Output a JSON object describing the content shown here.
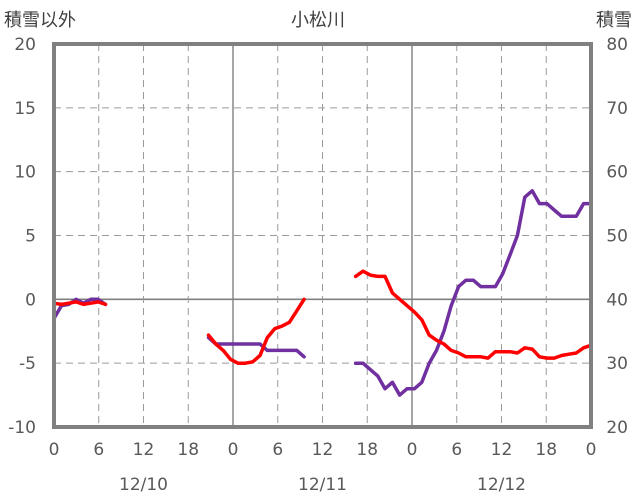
{
  "chart_data": {
    "type": "line",
    "title": "小松川",
    "left_axis_label": "積雪以外",
    "right_axis_label": "積雪",
    "y_left": {
      "min": -10,
      "max": 20,
      "ticks": [
        20,
        15,
        10,
        5,
        0,
        -5,
        -10
      ]
    },
    "y_right": {
      "min": 20,
      "max": 80,
      "ticks": [
        80,
        70,
        60,
        50,
        40,
        30,
        20
      ]
    },
    "x_ticks": [
      "0",
      "6",
      "12",
      "18",
      "0",
      "6",
      "12",
      "18",
      "0",
      "6",
      "12",
      "18",
      "0"
    ],
    "date_labels": [
      "12/10",
      "12/11",
      "12/12"
    ],
    "grid": true,
    "series": [
      {
        "color": "#7030a0",
        "axis": "left",
        "segments": [
          [
            [
              0,
              -1.5
            ],
            [
              1,
              -0.5
            ],
            [
              2,
              -0.4
            ],
            [
              3,
              0
            ],
            [
              4,
              -0.3
            ],
            [
              5,
              0
            ],
            [
              6,
              0
            ],
            [
              7,
              -0.4
            ]
          ],
          [
            [
              21,
              -3
            ],
            [
              22,
              -3.5
            ],
            [
              23,
              -3.5
            ],
            [
              24,
              -3.5
            ],
            [
              25,
              -3.5
            ],
            [
              26,
              -3.5
            ],
            [
              27,
              -3.5
            ],
            [
              28,
              -3.5
            ],
            [
              29,
              -4
            ],
            [
              30,
              -4
            ],
            [
              31,
              -4
            ],
            [
              32,
              -4
            ],
            [
              33,
              -4
            ],
            [
              34,
              -4.5
            ]
          ],
          [
            [
              41,
              -5
            ],
            [
              42,
              -5
            ],
            [
              43,
              -5.5
            ],
            [
              44,
              -6
            ],
            [
              45,
              -7
            ],
            [
              46,
              -6.5
            ],
            [
              47,
              -7.5
            ],
            [
              48,
              -7
            ],
            [
              49,
              -7
            ],
            [
              50,
              -6.5
            ],
            [
              51,
              -5
            ],
            [
              52,
              -4
            ],
            [
              53,
              -2.5
            ],
            [
              54,
              -0.5
            ],
            [
              55,
              1
            ],
            [
              56,
              1.5
            ],
            [
              57,
              1.5
            ],
            [
              58,
              1
            ],
            [
              59,
              1
            ],
            [
              60,
              1
            ],
            [
              61,
              2
            ],
            [
              62,
              3.5
            ],
            [
              63,
              5
            ],
            [
              64,
              8
            ],
            [
              65,
              8.5
            ],
            [
              66,
              7.5
            ],
            [
              67,
              7.5
            ],
            [
              68,
              7
            ],
            [
              69,
              6.5
            ],
            [
              70,
              6.5
            ],
            [
              71,
              6.5
            ],
            [
              72,
              7.5
            ],
            [
              73,
              7.5
            ]
          ]
        ]
      },
      {
        "color": "#ff0000",
        "axis": "left",
        "segments": [
          [
            [
              0,
              -0.3
            ],
            [
              1,
              -0.4
            ],
            [
              2,
              -0.3
            ],
            [
              3,
              -0.2
            ],
            [
              4,
              -0.4
            ],
            [
              5,
              -0.3
            ],
            [
              6,
              -0.2
            ],
            [
              7,
              -0.4
            ]
          ],
          [
            [
              21,
              -2.8
            ],
            [
              22,
              -3.5
            ],
            [
              23,
              -4
            ],
            [
              24,
              -4.7
            ],
            [
              25,
              -5
            ],
            [
              26,
              -5
            ],
            [
              27,
              -4.9
            ],
            [
              28,
              -4.4
            ],
            [
              29,
              -3
            ],
            [
              30,
              -2.3
            ],
            [
              31,
              -2.1
            ],
            [
              32,
              -1.8
            ],
            [
              33,
              -0.9
            ],
            [
              34,
              0
            ]
          ],
          [
            [
              41,
              1.8
            ],
            [
              42,
              2.2
            ],
            [
              43,
              1.9
            ],
            [
              44,
              1.8
            ],
            [
              45,
              1.8
            ],
            [
              46,
              0.5
            ],
            [
              47,
              0
            ],
            [
              48,
              -0.5
            ],
            [
              49,
              -1
            ],
            [
              50,
              -1.6
            ],
            [
              51,
              -2.8
            ],
            [
              52,
              -3.2
            ],
            [
              53,
              -3.5
            ],
            [
              54,
              -4
            ],
            [
              55,
              -4.2
            ],
            [
              56,
              -4.5
            ],
            [
              57,
              -4.5
            ],
            [
              58,
              -4.5
            ],
            [
              59,
              -4.6
            ],
            [
              60,
              -4.1
            ],
            [
              61,
              -4.1
            ],
            [
              62,
              -4.1
            ],
            [
              63,
              -4.2
            ],
            [
              64,
              -3.8
            ],
            [
              65,
              -3.9
            ],
            [
              66,
              -4.5
            ],
            [
              67,
              -4.6
            ],
            [
              68,
              -4.6
            ],
            [
              69,
              -4.4
            ],
            [
              70,
              -4.3
            ],
            [
              71,
              -4.2
            ],
            [
              72,
              -3.8
            ],
            [
              73,
              -3.6
            ]
          ]
        ]
      }
    ]
  }
}
